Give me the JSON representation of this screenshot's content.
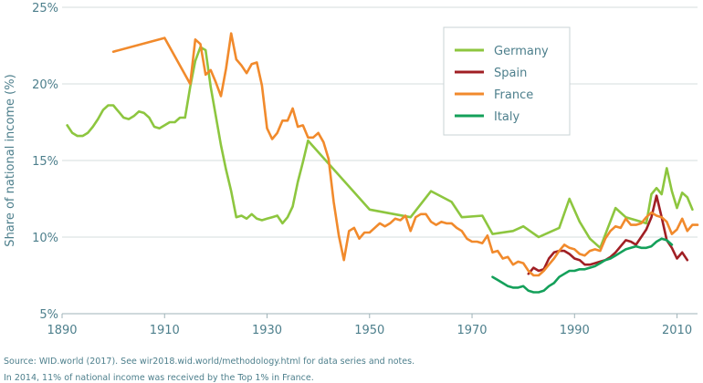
{
  "chart_data": {
    "type": "line",
    "xlabel": "",
    "ylabel": "Share of national income (%)",
    "xlim": [
      1890,
      2014
    ],
    "ylim": [
      5,
      25
    ],
    "x_ticks": [
      1890,
      1910,
      1930,
      1950,
      1970,
      1990,
      2010
    ],
    "x_tick_labels": [
      "1890",
      "1910",
      "1930",
      "1950",
      "1970",
      "1990",
      "2010"
    ],
    "y_ticks": [
      5,
      10,
      15,
      20,
      25
    ],
    "y_tick_labels": [
      "5%",
      "10%",
      "15%",
      "20%",
      "25%"
    ],
    "grid": "horizontal",
    "legend_position": "top-right",
    "series": [
      {
        "name": "Germany",
        "color": "#8dc63f",
        "points": [
          [
            1891,
            17.3
          ],
          [
            1892,
            16.8
          ],
          [
            1893,
            16.6
          ],
          [
            1894,
            16.6
          ],
          [
            1895,
            16.8
          ],
          [
            1896,
            17.2
          ],
          [
            1897,
            17.7
          ],
          [
            1898,
            18.3
          ],
          [
            1899,
            18.6
          ],
          [
            1900,
            18.6
          ],
          [
            1901,
            18.2
          ],
          [
            1902,
            17.8
          ],
          [
            1903,
            17.7
          ],
          [
            1904,
            17.9
          ],
          [
            1905,
            18.2
          ],
          [
            1906,
            18.1
          ],
          [
            1907,
            17.8
          ],
          [
            1908,
            17.2
          ],
          [
            1909,
            17.1
          ],
          [
            1910,
            17.3
          ],
          [
            1911,
            17.5
          ],
          [
            1912,
            17.5
          ],
          [
            1913,
            17.8
          ],
          [
            1914,
            17.8
          ],
          [
            1915,
            19.8
          ],
          [
            1916,
            21.5
          ],
          [
            1917,
            22.4
          ],
          [
            1918,
            22.2
          ],
          [
            1919,
            19.8
          ],
          [
            1920,
            17.9
          ],
          [
            1921,
            16.0
          ],
          [
            1922,
            14.4
          ],
          [
            1923,
            13.0
          ],
          [
            1924,
            11.3
          ],
          [
            1925,
            11.4
          ],
          [
            1926,
            11.2
          ],
          [
            1927,
            11.5
          ],
          [
            1928,
            11.2
          ],
          [
            1929,
            11.1
          ],
          [
            1930,
            11.2
          ],
          [
            1931,
            11.3
          ],
          [
            1932,
            11.4
          ],
          [
            1933,
            10.9
          ],
          [
            1934,
            11.3
          ],
          [
            1935,
            12.0
          ],
          [
            1936,
            13.6
          ],
          [
            1937,
            14.9
          ],
          [
            1938,
            16.3
          ],
          [
            1950,
            11.8
          ],
          [
            1958,
            11.3
          ],
          [
            1962,
            13.0
          ],
          [
            1966,
            12.3
          ],
          [
            1968,
            11.3
          ],
          [
            1972,
            11.4
          ],
          [
            1974,
            10.2
          ],
          [
            1978,
            10.4
          ],
          [
            1980,
            10.7
          ],
          [
            1983,
            10.0
          ],
          [
            1987,
            10.6
          ],
          [
            1989,
            12.5
          ],
          [
            1991,
            11.0
          ],
          [
            1993,
            9.9
          ],
          [
            1995,
            9.3
          ],
          [
            1998,
            11.9
          ],
          [
            2000,
            11.3
          ],
          [
            2002,
            11.1
          ],
          [
            2004,
            10.9
          ],
          [
            2005,
            12.8
          ],
          [
            2006,
            13.2
          ],
          [
            2007,
            12.8
          ],
          [
            2008,
            14.5
          ],
          [
            2009,
            13.0
          ],
          [
            2010,
            11.9
          ],
          [
            2011,
            12.9
          ],
          [
            2012,
            12.6
          ],
          [
            2013,
            11.8
          ]
        ]
      },
      {
        "name": "Spain",
        "color": "#a01f24",
        "points": [
          [
            1981,
            7.6
          ],
          [
            1982,
            8.0
          ],
          [
            1983,
            7.8
          ],
          [
            1984,
            7.9
          ],
          [
            1985,
            8.6
          ],
          [
            1986,
            9.0
          ],
          [
            1987,
            9.1
          ],
          [
            1988,
            9.1
          ],
          [
            1989,
            8.9
          ],
          [
            1990,
            8.6
          ],
          [
            1991,
            8.5
          ],
          [
            1992,
            8.2
          ],
          [
            1993,
            8.2
          ],
          [
            1994,
            8.3
          ],
          [
            1995,
            8.4
          ],
          [
            1996,
            8.5
          ],
          [
            1997,
            8.7
          ],
          [
            1998,
            9.0
          ],
          [
            1999,
            9.4
          ],
          [
            2000,
            9.8
          ],
          [
            2001,
            9.7
          ],
          [
            2002,
            9.5
          ],
          [
            2003,
            10.0
          ],
          [
            2004,
            10.5
          ],
          [
            2005,
            11.3
          ],
          [
            2006,
            12.7
          ],
          [
            2007,
            11.3
          ],
          [
            2008,
            9.8
          ],
          [
            2009,
            9.3
          ],
          [
            2010,
            8.6
          ],
          [
            2011,
            9.0
          ],
          [
            2012,
            8.5
          ]
        ]
      },
      {
        "name": "France",
        "color": "#f18a2c",
        "points": [
          [
            1900,
            22.1
          ],
          [
            1910,
            23.0
          ],
          [
            1915,
            20.0
          ],
          [
            1916,
            22.9
          ],
          [
            1917,
            22.6
          ],
          [
            1918,
            20.6
          ],
          [
            1919,
            20.9
          ],
          [
            1920,
            20.1
          ],
          [
            1921,
            19.2
          ],
          [
            1922,
            21.0
          ],
          [
            1923,
            23.3
          ],
          [
            1924,
            21.6
          ],
          [
            1925,
            21.2
          ],
          [
            1926,
            20.7
          ],
          [
            1927,
            21.3
          ],
          [
            1928,
            21.4
          ],
          [
            1929,
            19.9
          ],
          [
            1930,
            17.1
          ],
          [
            1931,
            16.4
          ],
          [
            1932,
            16.8
          ],
          [
            1933,
            17.6
          ],
          [
            1934,
            17.6
          ],
          [
            1935,
            18.4
          ],
          [
            1936,
            17.2
          ],
          [
            1937,
            17.3
          ],
          [
            1938,
            16.5
          ],
          [
            1939,
            16.5
          ],
          [
            1940,
            16.8
          ],
          [
            1941,
            16.2
          ],
          [
            1942,
            15.1
          ],
          [
            1943,
            12.3
          ],
          [
            1944,
            10.1
          ],
          [
            1945,
            8.5
          ],
          [
            1946,
            10.4
          ],
          [
            1947,
            10.6
          ],
          [
            1948,
            9.9
          ],
          [
            1949,
            10.3
          ],
          [
            1950,
            10.3
          ],
          [
            1951,
            10.6
          ],
          [
            1952,
            10.9
          ],
          [
            1953,
            10.7
          ],
          [
            1954,
            10.9
          ],
          [
            1955,
            11.2
          ],
          [
            1956,
            11.1
          ],
          [
            1957,
            11.4
          ],
          [
            1958,
            10.4
          ],
          [
            1959,
            11.3
          ],
          [
            1960,
            11.5
          ],
          [
            1961,
            11.5
          ],
          [
            1962,
            11.0
          ],
          [
            1963,
            10.8
          ],
          [
            1964,
            11.0
          ],
          [
            1965,
            10.9
          ],
          [
            1966,
            10.9
          ],
          [
            1967,
            10.6
          ],
          [
            1968,
            10.4
          ],
          [
            1969,
            9.9
          ],
          [
            1970,
            9.7
          ],
          [
            1971,
            9.7
          ],
          [
            1972,
            9.6
          ],
          [
            1973,
            10.1
          ],
          [
            1974,
            9.0
          ],
          [
            1975,
            9.1
          ],
          [
            1976,
            8.6
          ],
          [
            1977,
            8.7
          ],
          [
            1978,
            8.2
          ],
          [
            1979,
            8.4
          ],
          [
            1980,
            8.3
          ],
          [
            1981,
            7.8
          ],
          [
            1982,
            7.5
          ],
          [
            1983,
            7.5
          ],
          [
            1984,
            7.8
          ],
          [
            1985,
            8.2
          ],
          [
            1986,
            8.6
          ],
          [
            1987,
            9.1
          ],
          [
            1988,
            9.5
          ],
          [
            1989,
            9.3
          ],
          [
            1990,
            9.2
          ],
          [
            1991,
            8.9
          ],
          [
            1992,
            8.8
          ],
          [
            1993,
            9.1
          ],
          [
            1994,
            9.2
          ],
          [
            1995,
            9.1
          ],
          [
            1996,
            9.9
          ],
          [
            1997,
            10.4
          ],
          [
            1998,
            10.7
          ],
          [
            1999,
            10.6
          ],
          [
            2000,
            11.2
          ],
          [
            2001,
            10.8
          ],
          [
            2002,
            10.8
          ],
          [
            2003,
            10.9
          ],
          [
            2004,
            11.3
          ],
          [
            2005,
            11.6
          ],
          [
            2006,
            11.4
          ],
          [
            2007,
            11.3
          ],
          [
            2008,
            11.0
          ],
          [
            2009,
            10.2
          ],
          [
            2010,
            10.5
          ],
          [
            2011,
            11.2
          ],
          [
            2012,
            10.4
          ],
          [
            2013,
            10.8
          ],
          [
            2014,
            10.8
          ]
        ]
      },
      {
        "name": "Italy",
        "color": "#14a05a",
        "points": [
          [
            1974,
            7.4
          ],
          [
            1975,
            7.2
          ],
          [
            1976,
            7.0
          ],
          [
            1977,
            6.8
          ],
          [
            1978,
            6.7
          ],
          [
            1979,
            6.7
          ],
          [
            1980,
            6.8
          ],
          [
            1981,
            6.5
          ],
          [
            1982,
            6.4
          ],
          [
            1983,
            6.4
          ],
          [
            1984,
            6.5
          ],
          [
            1985,
            6.8
          ],
          [
            1986,
            7.0
          ],
          [
            1987,
            7.4
          ],
          [
            1988,
            7.6
          ],
          [
            1989,
            7.8
          ],
          [
            1990,
            7.8
          ],
          [
            1991,
            7.9
          ],
          [
            1992,
            7.9
          ],
          [
            1993,
            8.0
          ],
          [
            1994,
            8.1
          ],
          [
            1995,
            8.3
          ],
          [
            1996,
            8.5
          ],
          [
            1997,
            8.6
          ],
          [
            1998,
            8.8
          ],
          [
            1999,
            9.0
          ],
          [
            2000,
            9.2
          ],
          [
            2001,
            9.3
          ],
          [
            2002,
            9.4
          ],
          [
            2003,
            9.3
          ],
          [
            2004,
            9.3
          ],
          [
            2005,
            9.4
          ],
          [
            2006,
            9.7
          ],
          [
            2007,
            9.9
          ],
          [
            2008,
            9.8
          ],
          [
            2009,
            9.5
          ]
        ]
      }
    ]
  },
  "notes": {
    "source": "Source: WID.world (2017). See wir2018.wid.world/methodology.html for data series and notes.",
    "caption": "In 2014, 11% of national income was received by the Top 1% in France."
  }
}
